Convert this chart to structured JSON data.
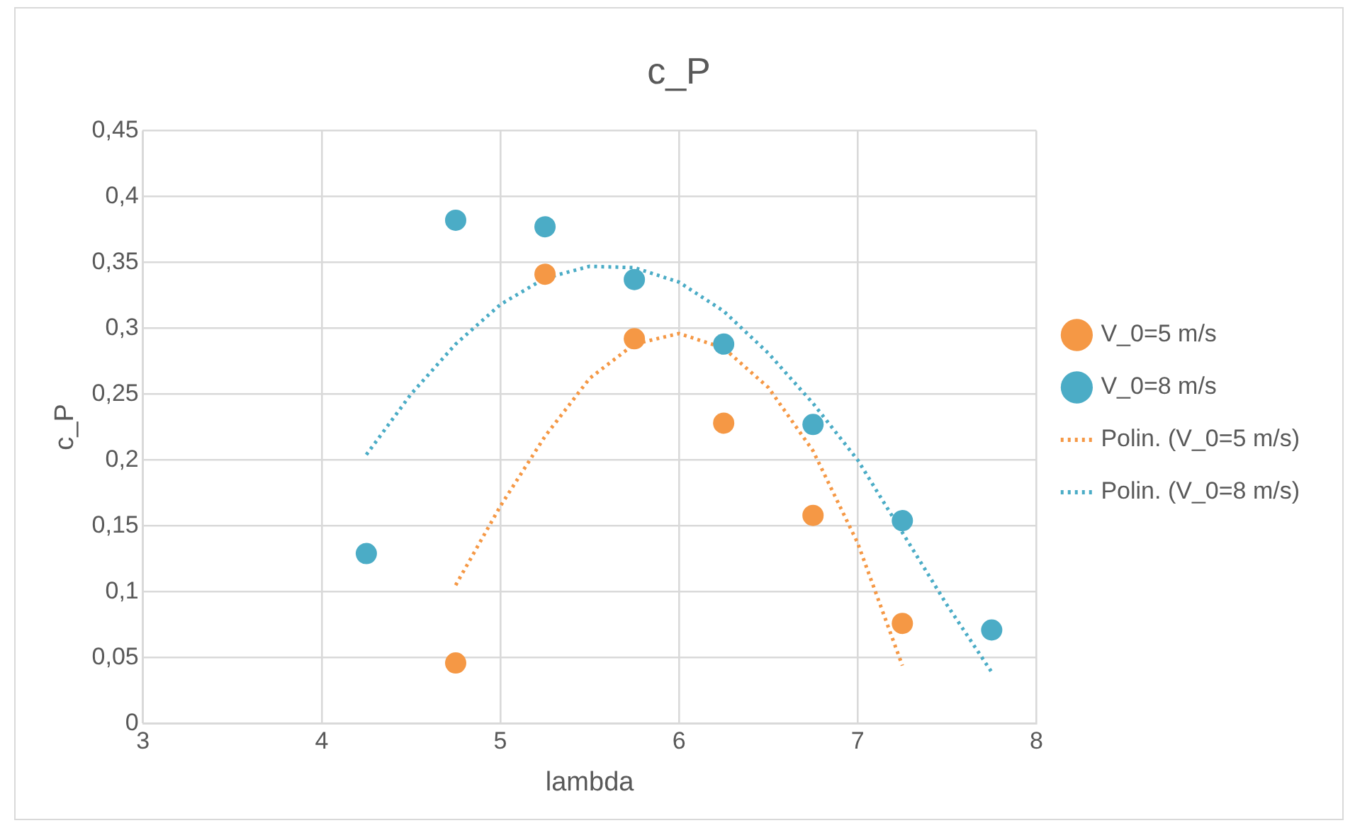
{
  "chart_data": {
    "type": "scatter",
    "title": "c_P",
    "xlabel": "lambda",
    "ylabel": "c_P",
    "xlim": [
      3,
      8
    ],
    "xticks": [
      3,
      4,
      5,
      6,
      7,
      8
    ],
    "ylim": [
      0,
      0.45
    ],
    "yticks": [
      0,
      {
        "value": 0.05,
        "label": "0,05"
      },
      {
        "value": 0.1,
        "label": "0,1"
      },
      {
        "value": 0.15,
        "label": "0,15"
      },
      {
        "value": 0.2,
        "label": "0,2"
      },
      {
        "value": 0.25,
        "label": "0,25"
      },
      {
        "value": 0.3,
        "label": "0,3"
      },
      {
        "value": 0.35,
        "label": "0,35"
      },
      {
        "value": 0.4,
        "label": "0,4"
      },
      {
        "value": 0.45,
        "label": "0,45"
      }
    ],
    "grid": true,
    "legend": "right",
    "marker": "circle",
    "series": [
      {
        "name": "V_0=5 m/s",
        "type": "scatter",
        "color": "#f59845",
        "x": [
          4.75,
          5.25,
          5.75,
          6.25,
          6.75,
          7.25
        ],
        "values": [
          0.046,
          0.341,
          0.292,
          0.228,
          0.158,
          0.076
        ]
      },
      {
        "name": "V_0=8 m/s",
        "type": "scatter",
        "color": "#4bacc6",
        "x": [
          4.25,
          4.75,
          5.25,
          5.75,
          6.25,
          6.75,
          7.25,
          7.75
        ],
        "values": [
          0.129,
          0.382,
          0.377,
          0.337,
          0.288,
          0.227,
          0.154,
          0.071
        ]
      },
      {
        "name": "Polin. (V_0=5 m/s)",
        "type": "line",
        "color": "#f59845",
        "line_style": "dotted",
        "marker": "none",
        "x": [
          4.75,
          5,
          5.25,
          5.5,
          5.75,
          6,
          6.25,
          6.5,
          6.75,
          7,
          7.25
        ],
        "values": [
          0.105,
          0.165,
          0.218,
          0.262,
          0.288,
          0.296,
          0.285,
          0.255,
          0.207,
          0.137,
          0.044
        ]
      },
      {
        "name": "Polin. (V_0=8 m/s)",
        "type": "line",
        "color": "#4bacc6",
        "line_style": "dotted",
        "marker": "none",
        "x": [
          4.25,
          4.5,
          4.75,
          5,
          5.25,
          5.5,
          5.75,
          6,
          6.25,
          6.5,
          6.75,
          7,
          7.25,
          7.5,
          7.75
        ],
        "values": [
          0.204,
          0.25,
          0.288,
          0.318,
          0.338,
          0.347,
          0.346,
          0.335,
          0.313,
          0.281,
          0.243,
          0.2,
          0.145,
          0.09,
          0.039
        ]
      }
    ]
  }
}
